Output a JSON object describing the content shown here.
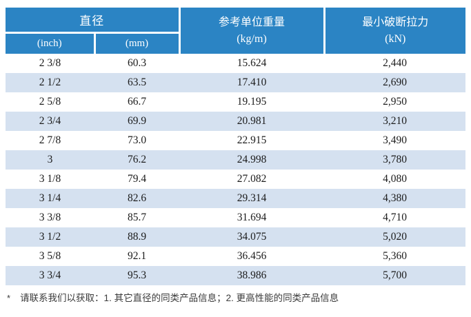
{
  "table": {
    "header": {
      "diameter_label": "直径",
      "inch_label": "(inch)",
      "mm_label": "(mm)",
      "unit_weight_label": "参考单位重量",
      "unit_weight_unit": "(kg/m)",
      "breaking_force_label": "最小破断拉力",
      "breaking_force_unit": "(kN)"
    },
    "rows": [
      {
        "inch": "2 3/8",
        "mm": "60.3",
        "kg_m": "15.624",
        "kn": "2,440"
      },
      {
        "inch": "2 1/2",
        "mm": "63.5",
        "kg_m": "17.410",
        "kn": "2,690"
      },
      {
        "inch": "2 5/8",
        "mm": "66.7",
        "kg_m": "19.195",
        "kn": "2,950"
      },
      {
        "inch": "2 3/4",
        "mm": "69.9",
        "kg_m": "20.981",
        "kn": "3,210"
      },
      {
        "inch": "2 7/8",
        "mm": "73.0",
        "kg_m": "22.915",
        "kn": "3,490"
      },
      {
        "inch": "3",
        "mm": "76.2",
        "kg_m": "24.998",
        "kn": "3,780"
      },
      {
        "inch": "3 1/8",
        "mm": "79.4",
        "kg_m": "27.082",
        "kn": "4,080"
      },
      {
        "inch": "3 1/4",
        "mm": "82.6",
        "kg_m": "29.314",
        "kn": "4,380"
      },
      {
        "inch": "3 3/8",
        "mm": "85.7",
        "kg_m": "31.694",
        "kn": "4,710"
      },
      {
        "inch": "3 1/2",
        "mm": "88.9",
        "kg_m": "34.075",
        "kn": "5,020"
      },
      {
        "inch": "3 5/8",
        "mm": "92.1",
        "kg_m": "36.456",
        "kn": "5,360"
      },
      {
        "inch": "3 3/4",
        "mm": "95.3",
        "kg_m": "38.986",
        "kn": "5,700"
      }
    ]
  },
  "footnote": {
    "marker": "*",
    "text": "请联系我们以获取：1. 其它直径的同类产品信息；2. 更高性能的同类产品信息"
  },
  "colors": {
    "header_bg": "#2b84c4",
    "header_text": "#ffffff",
    "row_alt_bg": "#d5e1f0",
    "row_text": "#1b1b1b",
    "footnote_text": "#3a3a3a",
    "page_bg": "#ffffff"
  }
}
